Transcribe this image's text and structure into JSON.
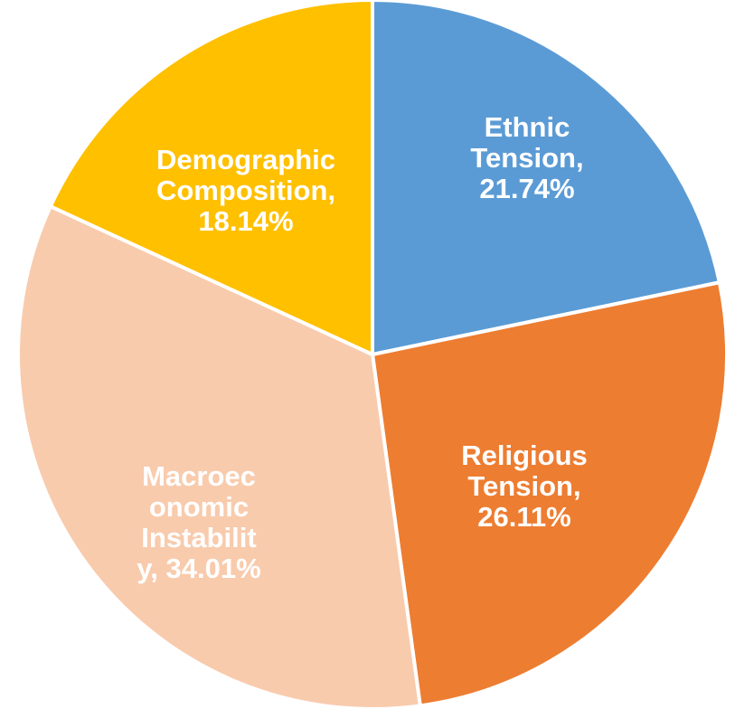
{
  "chart_data": {
    "type": "pie",
    "title": "",
    "start_angle_deg": 0,
    "direction": "clockwise",
    "slices": [
      {
        "name": "Ethnic Tension",
        "value": 21.74,
        "color": "#5B9BD5",
        "label_lines": [
          "Ethnic",
          "Tension,",
          "21.74%"
        ]
      },
      {
        "name": "Religious Tension",
        "value": 26.11,
        "color": "#ED7D31",
        "label_lines": [
          "Religious",
          "Tension,",
          "26.11%"
        ]
      },
      {
        "name": "Macroeconomic Instability",
        "value": 34.01,
        "color": "#F8CBAD",
        "label_lines": [
          "Macroec",
          "onomic",
          "Instabilit",
          "y, 34.01%"
        ]
      },
      {
        "name": "Demographic Composition",
        "value": 18.14,
        "color": "#FFC000",
        "label_lines": [
          "Demographic",
          "Composition,",
          "18.14%"
        ]
      }
    ]
  }
}
